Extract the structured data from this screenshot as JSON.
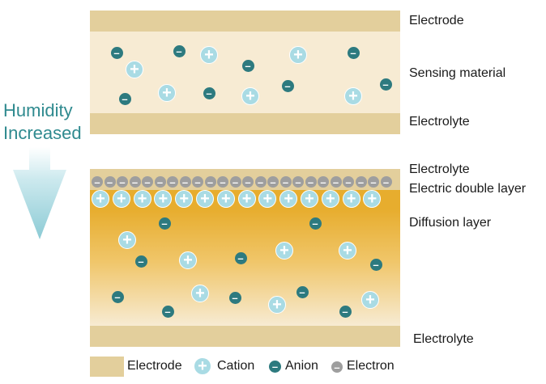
{
  "side_label": [
    "Humidity",
    "Increased"
  ],
  "top_panel": {
    "electrode_label": "Electrode",
    "sensing_label": "Sensing material",
    "electrolyte_label": "Electrolyte"
  },
  "bottom_panel": {
    "electrolyte_top_label": "Electrolyte",
    "double_layer_label": "Electric double layer",
    "diffusion_label": "Diffusion layer",
    "electrolyte_bottom_label": "Electrolyte"
  },
  "legend": {
    "electrode": "Electrode",
    "cation": "Cation",
    "anion": "Anion",
    "electron": "Electron"
  },
  "symbols": {
    "plus": "+",
    "minus": "–"
  },
  "colors": {
    "electrode": "#e3cf9c",
    "sensing": "#f7ebd3",
    "cation": "#a9dbe4",
    "anion": "#2d7a7f",
    "electron": "#9e9e9e",
    "diffusion_top": "#e7ad2e",
    "diffusion_bottom": "#f7ebd3",
    "arrow": "#9fd4dc",
    "side_text": "#2f8a8f"
  }
}
